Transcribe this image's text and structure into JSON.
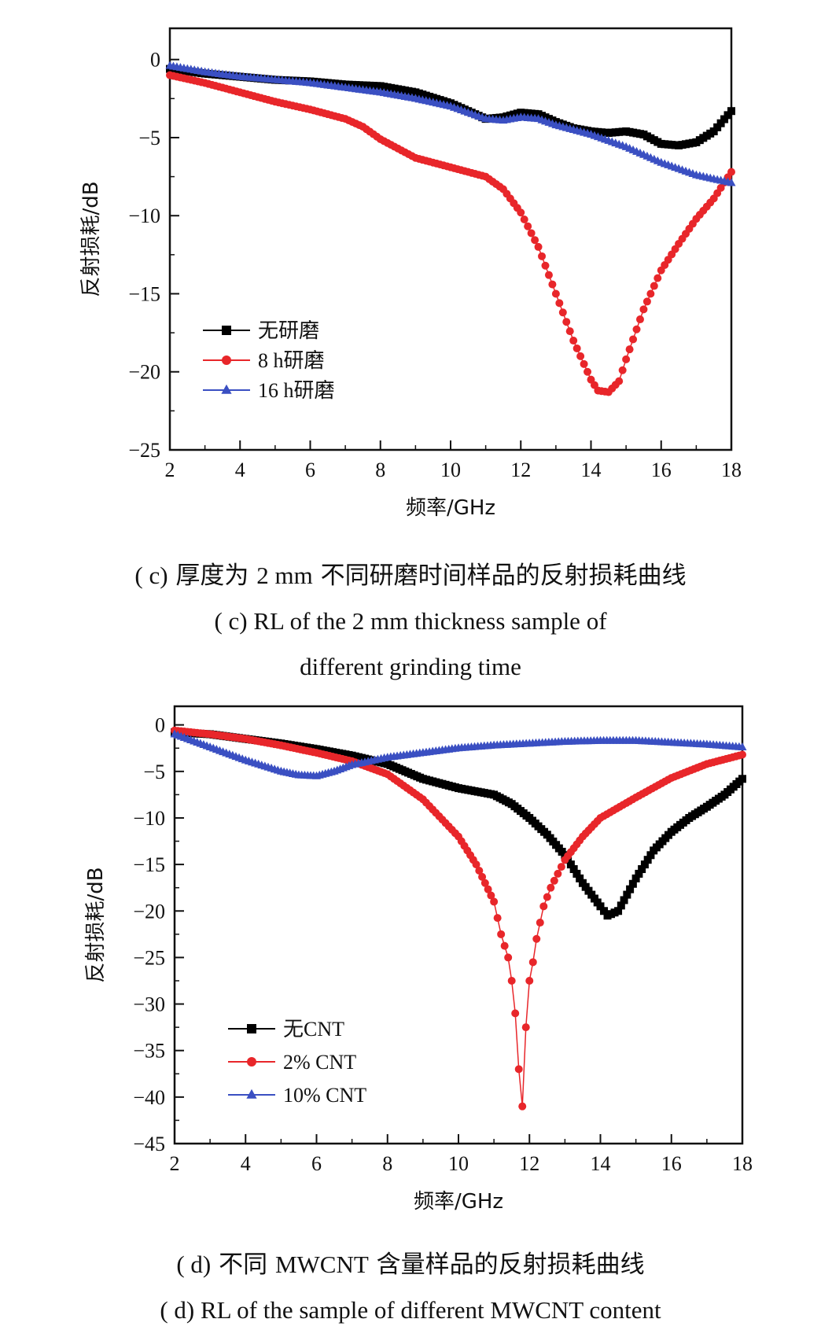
{
  "chart_data": [
    {
      "id": "c",
      "type": "line",
      "xlabel": "频率/GHz",
      "ylabel": "反射损耗/dB",
      "xlim": [
        2,
        18
      ],
      "ylim": [
        -25,
        2
      ],
      "x_ticks": [
        2,
        4,
        6,
        8,
        10,
        12,
        14,
        16,
        18
      ],
      "y_ticks": [
        0,
        -5,
        -10,
        -15,
        -20,
        -25
      ],
      "y_tick_labels": [
        "0",
        "−5",
        "−10",
        "−15",
        "−20",
        "−25"
      ],
      "legend_position": "bottom-left",
      "series": [
        {
          "name": "无研磨",
          "color": "#000000",
          "marker": "square",
          "points": [
            [
              2,
              -0.6
            ],
            [
              3,
              -0.9
            ],
            [
              4,
              -1.1
            ],
            [
              5,
              -1.3
            ],
            [
              6,
              -1.4
            ],
            [
              7,
              -1.6
            ],
            [
              8,
              -1.7
            ],
            [
              9,
              -2.1
            ],
            [
              10,
              -2.8
            ],
            [
              11,
              -3.8
            ],
            [
              11.5,
              -3.7
            ],
            [
              12,
              -3.4
            ],
            [
              12.5,
              -3.5
            ],
            [
              13,
              -4.0
            ],
            [
              13.5,
              -4.4
            ],
            [
              14,
              -4.6
            ],
            [
              14.5,
              -4.7
            ],
            [
              15,
              -4.6
            ],
            [
              15.5,
              -4.8
            ],
            [
              16,
              -5.4
            ],
            [
              16.5,
              -5.5
            ],
            [
              17,
              -5.3
            ],
            [
              17.5,
              -4.6
            ],
            [
              18,
              -3.3
            ]
          ]
        },
        {
          "name": "8 h研磨",
          "color": "#e8262a",
          "marker": "circle",
          "points": [
            [
              2,
              -1.0
            ],
            [
              3,
              -1.5
            ],
            [
              4,
              -2.1
            ],
            [
              5,
              -2.7
            ],
            [
              6,
              -3.2
            ],
            [
              7,
              -3.8
            ],
            [
              7.5,
              -4.3
            ],
            [
              8,
              -5.1
            ],
            [
              9,
              -6.3
            ],
            [
              10,
              -6.9
            ],
            [
              11,
              -7.5
            ],
            [
              11.5,
              -8.3
            ],
            [
              12,
              -9.8
            ],
            [
              12.5,
              -12.0
            ],
            [
              13,
              -15.0
            ],
            [
              13.5,
              -18.0
            ],
            [
              14,
              -20.5
            ],
            [
              14.2,
              -21.2
            ],
            [
              14.5,
              -21.3
            ],
            [
              14.8,
              -20.6
            ],
            [
              15,
              -19.2
            ],
            [
              15.5,
              -16.0
            ],
            [
              16,
              -13.5
            ],
            [
              16.5,
              -11.8
            ],
            [
              17,
              -10.2
            ],
            [
              17.5,
              -8.9
            ],
            [
              18,
              -7.2
            ]
          ]
        },
        {
          "name": "16 h研磨",
          "color": "#3a4fc2",
          "marker": "triangle",
          "points": [
            [
              2,
              -0.4
            ],
            [
              3,
              -0.8
            ],
            [
              4,
              -1.1
            ],
            [
              5,
              -1.3
            ],
            [
              6,
              -1.5
            ],
            [
              7,
              -1.8
            ],
            [
              8,
              -2.1
            ],
            [
              9,
              -2.5
            ],
            [
              10,
              -3.0
            ],
            [
              11,
              -3.8
            ],
            [
              11.5,
              -3.9
            ],
            [
              12,
              -3.7
            ],
            [
              12.5,
              -3.8
            ],
            [
              13,
              -4.2
            ],
            [
              14,
              -4.8
            ],
            [
              15,
              -5.6
            ],
            [
              16,
              -6.6
            ],
            [
              17,
              -7.4
            ],
            [
              18,
              -7.9
            ]
          ]
        }
      ]
    },
    {
      "id": "d",
      "type": "line",
      "xlabel": "频率/GHz",
      "ylabel": "反射损耗/dB",
      "xlim": [
        2,
        18
      ],
      "ylim": [
        -45,
        2
      ],
      "x_ticks": [
        2,
        4,
        6,
        8,
        10,
        12,
        14,
        16,
        18
      ],
      "y_ticks": [
        0,
        -5,
        -10,
        -15,
        -20,
        -25,
        -30,
        -35,
        -40,
        -45
      ],
      "y_tick_labels": [
        "0",
        "−5",
        "−10",
        "−15",
        "−20",
        "−25",
        "−30",
        "−35",
        "−40",
        "−45"
      ],
      "legend_position": "bottom-left",
      "series": [
        {
          "name": "无CNT",
          "color": "#000000",
          "marker": "square",
          "points": [
            [
              2,
              -0.8
            ],
            [
              3,
              -1.0
            ],
            [
              4,
              -1.5
            ],
            [
              5,
              -2.0
            ],
            [
              6,
              -2.6
            ],
            [
              7,
              -3.3
            ],
            [
              8,
              -4.2
            ],
            [
              8.5,
              -5.0
            ],
            [
              9,
              -5.8
            ],
            [
              10,
              -6.8
            ],
            [
              11,
              -7.5
            ],
            [
              11.5,
              -8.5
            ],
            [
              12,
              -10.0
            ],
            [
              12.5,
              -11.8
            ],
            [
              13,
              -14.0
            ],
            [
              13.5,
              -17.0
            ],
            [
              14,
              -19.5
            ],
            [
              14.2,
              -20.5
            ],
            [
              14.5,
              -20.0
            ],
            [
              15,
              -16.5
            ],
            [
              15.5,
              -13.5
            ],
            [
              16,
              -11.5
            ],
            [
              16.5,
              -10.0
            ],
            [
              17,
              -8.8
            ],
            [
              17.5,
              -7.5
            ],
            [
              18,
              -5.8
            ]
          ]
        },
        {
          "name": "2% CNT",
          "color": "#e8262a",
          "marker": "circle",
          "points": [
            [
              2,
              -0.6
            ],
            [
              3,
              -1.0
            ],
            [
              4,
              -1.5
            ],
            [
              5,
              -2.2
            ],
            [
              6,
              -3.0
            ],
            [
              7,
              -3.9
            ],
            [
              8,
              -5.3
            ],
            [
              9,
              -8.0
            ],
            [
              10,
              -12.0
            ],
            [
              10.5,
              -15.0
            ],
            [
              11,
              -19.0
            ],
            [
              11.2,
              -22.5
            ],
            [
              11.4,
              -25.0
            ],
            [
              11.5,
              -27.5
            ],
            [
              11.6,
              -31.0
            ],
            [
              11.7,
              -37.0
            ],
            [
              11.8,
              -41.0
            ],
            [
              11.9,
              -32.5
            ],
            [
              12,
              -27.5
            ],
            [
              12.1,
              -25.5
            ],
            [
              12.2,
              -23.0
            ],
            [
              12.4,
              -19.5
            ],
            [
              12.6,
              -17.5
            ],
            [
              13,
              -14.5
            ],
            [
              13.5,
              -12.0
            ],
            [
              14,
              -10.0
            ],
            [
              15,
              -7.8
            ],
            [
              16,
              -5.7
            ],
            [
              17,
              -4.2
            ],
            [
              18,
              -3.2
            ]
          ]
        },
        {
          "name": "10% CNT",
          "color": "#3a4fc2",
          "marker": "triangle",
          "points": [
            [
              2,
              -1.0
            ],
            [
              3,
              -2.4
            ],
            [
              4,
              -3.8
            ],
            [
              5,
              -5.0
            ],
            [
              5.5,
              -5.4
            ],
            [
              6,
              -5.5
            ],
            [
              6.5,
              -5.0
            ],
            [
              7,
              -4.3
            ],
            [
              8,
              -3.5
            ],
            [
              9,
              -3.0
            ],
            [
              10,
              -2.5
            ],
            [
              11,
              -2.2
            ],
            [
              12,
              -2.0
            ],
            [
              13,
              -1.8
            ],
            [
              14,
              -1.7
            ],
            [
              15,
              -1.7
            ],
            [
              16,
              -1.9
            ],
            [
              17,
              -2.1
            ],
            [
              18,
              -2.4
            ]
          ]
        }
      ]
    }
  ],
  "captions": {
    "c_zh_prefix": "( c)",
    "c_zh_num": "2 mm",
    "c_zh_a": "厚度为",
    "c_zh_b": "不同研磨时间样品的反射损耗曲线",
    "c_en_1": "( c)  RL of the 2 mm thickness sample of",
    "c_en_2": "different grinding time",
    "d_zh_prefix": "( d)",
    "d_zh_a": "不同",
    "d_zh_num": "MWCNT",
    "d_zh_b": "含量样品的反射损耗曲线",
    "d_en_1": "( d)  RL of the sample of different MWCNT content"
  }
}
